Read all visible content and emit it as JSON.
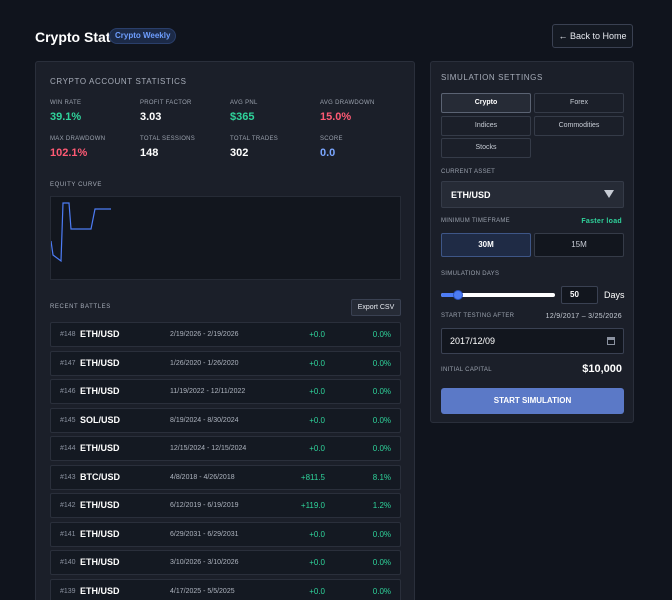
{
  "header": {
    "title": "Crypto Stats",
    "badge": "Crypto Weekly",
    "back_label": "← Back to Home"
  },
  "stats": {
    "section_title": "CRYPTO ACCOUNT STATISTICS",
    "items": [
      {
        "label": "WIN RATE",
        "value": "39.1%",
        "color": "#2fd39b"
      },
      {
        "label": "PROFIT FACTOR",
        "value": "3.03",
        "color": "#ffffff"
      },
      {
        "label": "AVG PNL",
        "value": "$365",
        "color": "#2fd39b"
      },
      {
        "label": "AVG DRAWDOWN",
        "value": "15.0%",
        "color": "#ff5a74"
      },
      {
        "label": "MAX DRAWDOWN",
        "value": "102.1%",
        "color": "#ff5a74"
      },
      {
        "label": "TOTAL SESSIONS",
        "value": "148",
        "color": "#ffffff"
      },
      {
        "label": "TOTAL TRADES",
        "value": "302",
        "color": "#ffffff"
      },
      {
        "label": "SCORE",
        "value": "0.0",
        "color": "#7aa6ff"
      }
    ]
  },
  "equity": {
    "label": "EQUITY CURVE"
  },
  "battles": {
    "label": "RECENT BATTLES",
    "export_label": "Export CSV",
    "rows": [
      {
        "id": "#148",
        "pair": "ETH/USD",
        "dates": "2/19/2026 - 2/19/2026",
        "pnl": "+0.0",
        "pct": "0.0%"
      },
      {
        "id": "#147",
        "pair": "ETH/USD",
        "dates": "1/26/2020 - 1/26/2020",
        "pnl": "+0.0",
        "pct": "0.0%"
      },
      {
        "id": "#146",
        "pair": "ETH/USD",
        "dates": "11/19/2022 - 12/11/2022",
        "pnl": "+0.0",
        "pct": "0.0%"
      },
      {
        "id": "#145",
        "pair": "SOL/USD",
        "dates": "8/19/2024 - 8/30/2024",
        "pnl": "+0.0",
        "pct": "0.0%"
      },
      {
        "id": "#144",
        "pair": "ETH/USD",
        "dates": "12/15/2024 - 12/15/2024",
        "pnl": "+0.0",
        "pct": "0.0%"
      },
      {
        "id": "#143",
        "pair": "BTC/USD",
        "dates": "4/8/2018 - 4/26/2018",
        "pnl": "+811.5",
        "pct": "8.1%"
      },
      {
        "id": "#142",
        "pair": "ETH/USD",
        "dates": "6/12/2019 - 6/19/2019",
        "pnl": "+119.0",
        "pct": "1.2%"
      },
      {
        "id": "#141",
        "pair": "ETH/USD",
        "dates": "6/29/2031 - 6/29/2031",
        "pnl": "+0.0",
        "pct": "0.0%"
      },
      {
        "id": "#140",
        "pair": "ETH/USD",
        "dates": "3/10/2026 - 3/10/2026",
        "pnl": "+0.0",
        "pct": "0.0%"
      },
      {
        "id": "#139",
        "pair": "ETH/USD",
        "dates": "4/17/2025 - 5/5/2025",
        "pnl": "+0.0",
        "pct": "0.0%"
      }
    ]
  },
  "sim": {
    "section_title": "SIMULATION SETTINGS",
    "asset_tabs": [
      "Crypto",
      "Forex",
      "Indices",
      "Commodities",
      "Stocks"
    ],
    "active_tab": "Crypto",
    "current_asset_label": "CURRENT ASSET",
    "current_asset": "ETH/USD",
    "min_tf_label": "MINIMUM TIMEFRAME",
    "faster_load": "Faster load",
    "timeframes": [
      "30M",
      "15M"
    ],
    "active_tf": "30M",
    "days_label": "SIMULATION DAYS",
    "days_value": "50",
    "days_unit": "Days",
    "days_fraction": 0.15,
    "start_after_label": "START TESTING AFTER",
    "range_text": "12/9/2017 – 3/25/2026",
    "date_value": "2017/12/09",
    "capital_label": "INITIAL CAPITAL",
    "capital_value": "$10,000",
    "start_label": "START SIMULATION"
  }
}
